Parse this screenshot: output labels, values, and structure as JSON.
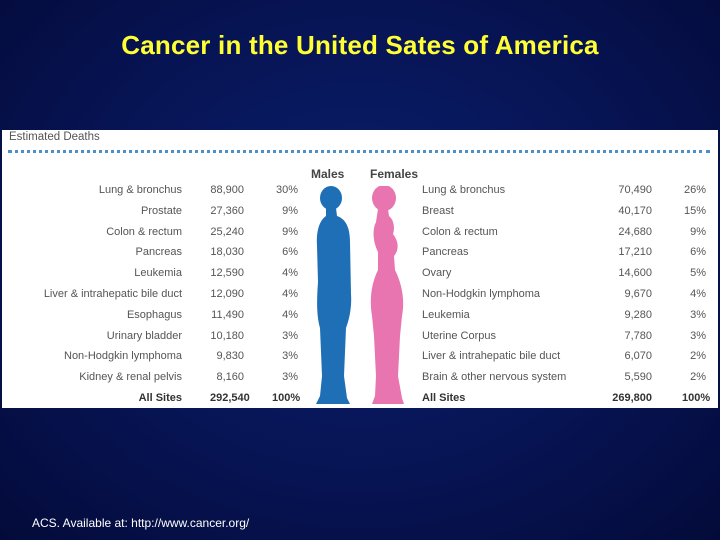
{
  "slide": {
    "title": "Cancer in the United Sates of America",
    "credit": "ACS. Available at: http://www.cancer.org/"
  },
  "table": {
    "heading": "Estimated Deaths",
    "males_label": "Males",
    "females_label": "Females",
    "colors": {
      "male": "#1f6fb7",
      "female": "#e874b0",
      "rule": "#4a8fc7"
    },
    "males": [
      {
        "site": "Lung & bronchus",
        "deaths": "88,900",
        "pct": "30%"
      },
      {
        "site": "Prostate",
        "deaths": "27,360",
        "pct": "9%"
      },
      {
        "site": "Colon & rectum",
        "deaths": "25,240",
        "pct": "9%"
      },
      {
        "site": "Pancreas",
        "deaths": "18,030",
        "pct": "6%"
      },
      {
        "site": "Leukemia",
        "deaths": "12,590",
        "pct": "4%"
      },
      {
        "site": "Liver & intrahepatic bile duct",
        "deaths": "12,090",
        "pct": "4%"
      },
      {
        "site": "Esophagus",
        "deaths": "11,490",
        "pct": "4%"
      },
      {
        "site": "Urinary bladder",
        "deaths": "10,180",
        "pct": "3%"
      },
      {
        "site": "Non-Hodgkin lymphoma",
        "deaths": "9,830",
        "pct": "3%"
      },
      {
        "site": "Kidney & renal pelvis",
        "deaths": "8,160",
        "pct": "3%"
      },
      {
        "site": "All Sites",
        "deaths": "292,540",
        "pct": "100%"
      }
    ],
    "females": [
      {
        "site": "Lung & bronchus",
        "deaths": "70,490",
        "pct": "26%"
      },
      {
        "site": "Breast",
        "deaths": "40,170",
        "pct": "15%"
      },
      {
        "site": "Colon & rectum",
        "deaths": "24,680",
        "pct": "9%"
      },
      {
        "site": "Pancreas",
        "deaths": "17,210",
        "pct": "6%"
      },
      {
        "site": "Ovary",
        "deaths": "14,600",
        "pct": "5%"
      },
      {
        "site": "Non-Hodgkin lymphoma",
        "deaths": "9,670",
        "pct": "4%"
      },
      {
        "site": "Leukemia",
        "deaths": "9,280",
        "pct": "3%"
      },
      {
        "site": "Uterine Corpus",
        "deaths": "7,780",
        "pct": "3%"
      },
      {
        "site": "Liver & intrahepatic bile duct",
        "deaths": "6,070",
        "pct": "2%"
      },
      {
        "site": "Brain & other nervous system",
        "deaths": "5,590",
        "pct": "2%"
      },
      {
        "site": "All Sites",
        "deaths": "269,800",
        "pct": "100%"
      }
    ]
  }
}
